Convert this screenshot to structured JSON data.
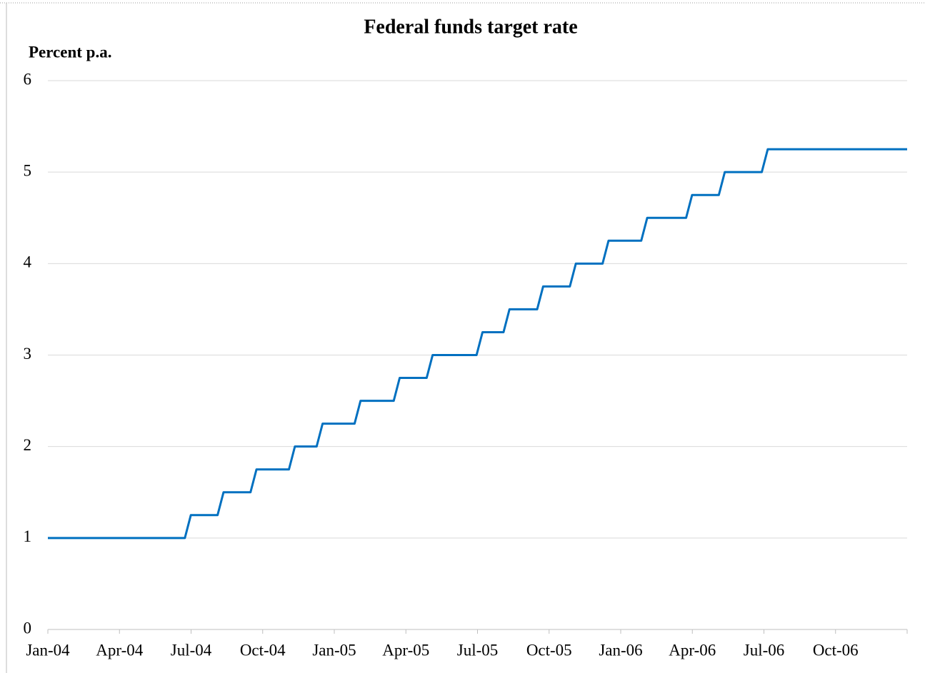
{
  "chart_data": {
    "type": "line",
    "title": "Federal funds target rate",
    "y_label": "Percent p.a.",
    "x": [
      0,
      5.74,
      5.99,
      7.11,
      7.36,
      8.49,
      8.74,
      10.1,
      10.35,
      11.26,
      11.51,
      12.85,
      13.1,
      14.49,
      14.74,
      15.87,
      16.12,
      17.96,
      18.21,
      19.09,
      19.34,
      20.5,
      20.75,
      21.87,
      22.12,
      23.24,
      23.49,
      24.86,
      25.11,
      26.74,
      26.99,
      28.11,
      28.36,
      29.91,
      30.16,
      36
    ],
    "series": [
      {
        "color": "#0070c0",
        "values": [
          1,
          1,
          1.25,
          1.25,
          1.5,
          1.5,
          1.75,
          1.75,
          2,
          2,
          2.25,
          2.25,
          2.5,
          2.5,
          2.75,
          2.75,
          3,
          3,
          3.25,
          3.25,
          3.5,
          3.5,
          3.75,
          3.75,
          4,
          4,
          4.25,
          4.25,
          4.5,
          4.5,
          4.75,
          4.75,
          5,
          5,
          5.25,
          5.25
        ]
      }
    ],
    "xlim": [
      0,
      36
    ],
    "xticks": [
      {
        "value": 0,
        "label": "Jan-04"
      },
      {
        "value": 3,
        "label": "Apr-04"
      },
      {
        "value": 6,
        "label": "Jul-04"
      },
      {
        "value": 9,
        "label": "Oct-04"
      },
      {
        "value": 12,
        "label": "Jan-05"
      },
      {
        "value": 15,
        "label": "Apr-05"
      },
      {
        "value": 18,
        "label": "Jul-05"
      },
      {
        "value": 21,
        "label": "Oct-05"
      },
      {
        "value": 24,
        "label": "Jan-06"
      },
      {
        "value": 27,
        "label": "Apr-06"
      },
      {
        "value": 30,
        "label": "Jul-06"
      },
      {
        "value": 33,
        "label": "Oct-06"
      }
    ],
    "ylim": [
      0,
      6
    ],
    "yticks": [
      0,
      1,
      2,
      3,
      4,
      5,
      6
    ],
    "grid": true
  }
}
